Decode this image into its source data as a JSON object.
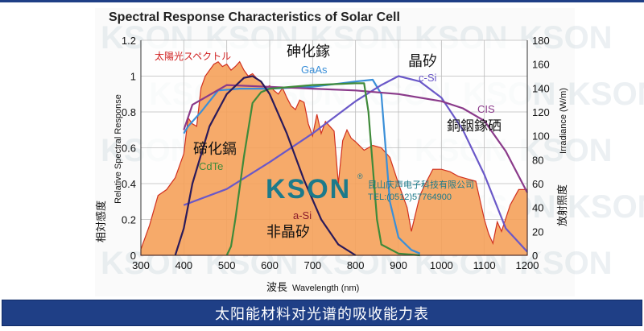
{
  "chart_data": {
    "type": "area",
    "title": "Spectral Response Characteristics of Solar Cell",
    "xlabel_cn": "波長",
    "xlabel": "Wavelength (nm)",
    "ylabel_cn": "相対感度",
    "ylabel": "Relative Spectral Response",
    "y2label_cn": "放射照度",
    "y2label": "Irradiance (W/m)",
    "xlim": [
      300,
      1200
    ],
    "ylim": [
      0,
      1.2
    ],
    "y2lim": [
      0,
      180
    ],
    "xticks": [
      "300",
      "400",
      "500",
      "600",
      "700",
      "800",
      "900",
      "1000",
      "1100",
      "1200"
    ],
    "yticks": [
      "0",
      "0.2",
      "0.4",
      "0.6",
      "0.8",
      "1",
      "1.2"
    ],
    "y2ticks": [
      "0",
      "20",
      "40",
      "60",
      "80",
      "100",
      "120",
      "140",
      "160",
      "180"
    ],
    "spectrum": {
      "label": "太陽光スペクトル",
      "color": "#f5a15a",
      "x": [
        300,
        320,
        340,
        360,
        380,
        400,
        410,
        420,
        430,
        440,
        450,
        460,
        470,
        480,
        490,
        500,
        510,
        520,
        530,
        540,
        550,
        560,
        570,
        580,
        590,
        600,
        610,
        620,
        630,
        640,
        650,
        660,
        670,
        680,
        690,
        700,
        710,
        720,
        730,
        740,
        750,
        760,
        770,
        780,
        790,
        800,
        820,
        840,
        860,
        880,
        900,
        920,
        930,
        940,
        950,
        960,
        980,
        1000,
        1020,
        1040,
        1060,
        1080,
        1100,
        1110,
        1120,
        1130,
        1140,
        1160,
        1180,
        1200
      ],
      "y": [
        5,
        25,
        50,
        55,
        65,
        85,
        115,
        110,
        108,
        140,
        150,
        155,
        160,
        162,
        158,
        160,
        155,
        158,
        162,
        155,
        150,
        152,
        148,
        145,
        140,
        142,
        138,
        135,
        140,
        132,
        125,
        122,
        130,
        128,
        110,
        100,
        118,
        102,
        112,
        108,
        104,
        60,
        96,
        105,
        98,
        95,
        88,
        92,
        90,
        82,
        60,
        40,
        20,
        35,
        50,
        58,
        72,
        72,
        70,
        66,
        64,
        62,
        30,
        18,
        10,
        28,
        20,
        42,
        55,
        55
      ]
    },
    "series": [
      {
        "name": "GaAs",
        "name_cn": "砷化鎵",
        "color": "#3a8fd8",
        "x": [
          400,
          410,
          440,
          480,
          530,
          600,
          700,
          800,
          840,
          860,
          870,
          880,
          900,
          930,
          950
        ],
        "y": [
          0.68,
          0.72,
          0.8,
          0.92,
          0.93,
          0.93,
          0.94,
          0.97,
          0.98,
          0.9,
          0.6,
          0.3,
          0.1,
          0.03,
          0.01
        ]
      },
      {
        "name": "c-Si",
        "name_cn": "晶矽",
        "color": "#6a58c8",
        "x": [
          400,
          500,
          600,
          700,
          800,
          860,
          900,
          950,
          1000,
          1050,
          1100,
          1150,
          1200
        ],
        "y": [
          0.28,
          0.37,
          0.52,
          0.68,
          0.86,
          0.95,
          1.0,
          0.97,
          0.88,
          0.7,
          0.45,
          0.15,
          0.02
        ]
      },
      {
        "name": "CIS",
        "name_cn": "銅銦鎵硒",
        "color": "#8a3a8a",
        "x": [
          400,
          420,
          500,
          600,
          700,
          800,
          900,
          1000,
          1050,
          1100,
          1150,
          1200
        ],
        "y": [
          0.7,
          0.84,
          0.95,
          0.94,
          0.93,
          0.92,
          0.9,
          0.86,
          0.82,
          0.75,
          0.58,
          0.35
        ]
      },
      {
        "name": "CdTe",
        "name_cn": "碲化鎘",
        "color": "#3f8a3a",
        "x": [
          500,
          510,
          520,
          540,
          560,
          580,
          600,
          700,
          800,
          820,
          830,
          840,
          850,
          860,
          900,
          950
        ],
        "y": [
          0.0,
          0.05,
          0.2,
          0.55,
          0.85,
          0.91,
          0.93,
          0.95,
          0.96,
          0.96,
          0.8,
          0.5,
          0.2,
          0.06,
          0.01,
          0.0
        ]
      },
      {
        "name": "a-Si",
        "name_cn": "非晶矽",
        "color": "#2a1a5a",
        "x": [
          380,
          400,
          420,
          460,
          500,
          540,
          560,
          580,
          600,
          640,
          680,
          720,
          760,
          800
        ],
        "y": [
          0.0,
          0.15,
          0.4,
          0.72,
          0.9,
          0.99,
          1.0,
          0.97,
          0.9,
          0.68,
          0.42,
          0.2,
          0.06,
          0.0
        ]
      }
    ]
  },
  "logo": {
    "text": "KSON",
    "registered": "®",
    "company": "昆山庆声电子科技有限公司",
    "phone": "TEL:(0512)57764900"
  },
  "watermark": "KSON",
  "caption": "太阳能材料对光谱的吸收能力表",
  "colors": {
    "plot_bg": "#ffffff",
    "grid": "#bbbbbb",
    "caption_bg": "#1f3f86",
    "logo": "#1d7a8a",
    "title": "#222222",
    "red_label": "#d02020"
  }
}
